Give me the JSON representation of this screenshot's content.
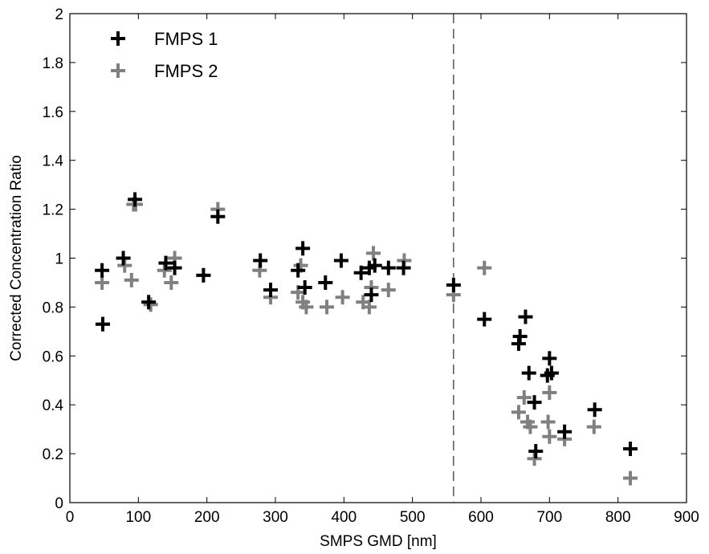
{
  "chart_data": {
    "type": "scatter",
    "title": "",
    "xlabel": "SMPS GMD [nm]",
    "ylabel": "Corrected Concentration Ratio",
    "xlim": [
      0,
      900
    ],
    "ylim": [
      0,
      2
    ],
    "xticks": [
      0,
      100,
      200,
      300,
      400,
      500,
      600,
      700,
      800,
      900
    ],
    "yticks": [
      0,
      0.2,
      0.4,
      0.6,
      0.8,
      1,
      1.2,
      1.4,
      1.6,
      1.8,
      2
    ],
    "ytick_labels": [
      "0",
      "0.2",
      "0.4",
      "0.6",
      "0.8",
      "1",
      "1.2",
      "1.4",
      "1.6",
      "1.8",
      "2"
    ],
    "grid": false,
    "legend_position": "top-left",
    "marker": "plus",
    "vline": {
      "x": 560,
      "style": "dashed",
      "color": "#000000"
    },
    "series": [
      {
        "name": "FMPS 1",
        "color": "#000000",
        "points": [
          [
            47,
            0.95
          ],
          [
            48,
            0.73
          ],
          [
            78,
            1.0
          ],
          [
            95,
            1.24
          ],
          [
            115,
            0.82
          ],
          [
            140,
            0.98
          ],
          [
            153,
            0.96
          ],
          [
            195,
            0.93
          ],
          [
            216,
            1.17
          ],
          [
            278,
            0.99
          ],
          [
            293,
            0.87
          ],
          [
            333,
            0.95
          ],
          [
            340,
            1.04
          ],
          [
            343,
            0.88
          ],
          [
            373,
            0.9
          ],
          [
            396,
            0.99
          ],
          [
            425,
            0.94
          ],
          [
            437,
            0.96
          ],
          [
            440,
            0.85
          ],
          [
            445,
            0.97
          ],
          [
            465,
            0.96
          ],
          [
            487,
            0.96
          ],
          [
            560,
            0.89
          ],
          [
            605,
            0.75
          ],
          [
            655,
            0.65
          ],
          [
            657,
            0.68
          ],
          [
            665,
            0.76
          ],
          [
            670,
            0.53
          ],
          [
            678,
            0.41
          ],
          [
            680,
            0.21
          ],
          [
            697,
            0.52
          ],
          [
            700,
            0.59
          ],
          [
            703,
            0.53
          ],
          [
            722,
            0.29
          ],
          [
            766,
            0.38
          ],
          [
            818,
            0.22
          ]
        ]
      },
      {
        "name": "FMPS 2",
        "color": "#808080",
        "points": [
          [
            47,
            0.9
          ],
          [
            48,
            0.73
          ],
          [
            80,
            0.97
          ],
          [
            93,
            1.22
          ],
          [
            96,
            1.22
          ],
          [
            90,
            0.91
          ],
          [
            118,
            0.81
          ],
          [
            138,
            0.95
          ],
          [
            148,
            0.9
          ],
          [
            153,
            1.0
          ],
          [
            195,
            0.93
          ],
          [
            216,
            1.2
          ],
          [
            277,
            0.95
          ],
          [
            293,
            0.84
          ],
          [
            333,
            0.86
          ],
          [
            337,
            0.97
          ],
          [
            340,
            0.82
          ],
          [
            345,
            0.8
          ],
          [
            375,
            0.8
          ],
          [
            398,
            0.84
          ],
          [
            428,
            0.82
          ],
          [
            437,
            0.8
          ],
          [
            440,
            0.88
          ],
          [
            443,
            1.02
          ],
          [
            465,
            0.87
          ],
          [
            488,
            0.99
          ],
          [
            560,
            0.85
          ],
          [
            605,
            0.96
          ],
          [
            655,
            0.37
          ],
          [
            663,
            0.43
          ],
          [
            668,
            0.33
          ],
          [
            672,
            0.31
          ],
          [
            678,
            0.18
          ],
          [
            698,
            0.33
          ],
          [
            700,
            0.45
          ],
          [
            700,
            0.27
          ],
          [
            722,
            0.26
          ],
          [
            765,
            0.31
          ],
          [
            818,
            0.1
          ]
        ]
      }
    ]
  }
}
